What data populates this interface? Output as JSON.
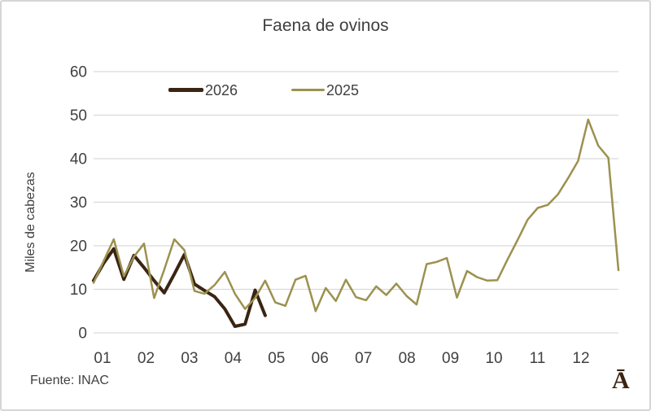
{
  "title": "Faena de ovinos",
  "source": "Fuente: INAC",
  "watermark": "Ā",
  "legend": [
    {
      "label": "2026",
      "color": "#3A2413"
    },
    {
      "label": "2025",
      "color": "#9C9150"
    }
  ],
  "colors": {
    "text": "#404040",
    "gridline": "#d9d9d9",
    "series_2026": "#3A2413",
    "series_2025": "#9C9150",
    "watermark": "#3B2413",
    "frame_border": "#d6d6d6"
  },
  "chart_data": {
    "type": "line",
    "title": "Faena de ovinos",
    "xlabel": "",
    "ylabel": "Miles de cabezas",
    "x_tick_labels": [
      "01",
      "02",
      "03",
      "04",
      "05",
      "06",
      "07",
      "08",
      "09",
      "10",
      "11",
      "12"
    ],
    "y_ticks": [
      0,
      10,
      20,
      30,
      40,
      50,
      60
    ],
    "ylim": [
      0,
      60
    ],
    "grid": true,
    "legend_position": "top-inside",
    "x_axis_note": "weekly points, tick labels are months",
    "series": [
      {
        "name": "2026",
        "color": "#3A2413",
        "stroke_width": 4,
        "values": [
          12,
          16,
          19.3,
          12.3,
          17.8,
          15,
          12,
          9.2,
          13.5,
          18,
          11.2,
          9.7,
          8.3,
          5.5,
          1.5,
          2,
          9.8,
          4
        ]
      },
      {
        "name": "2025",
        "color": "#9C9150",
        "stroke_width": 2.5,
        "values": [
          11.5,
          16.5,
          21.5,
          13,
          17.5,
          20.5,
          8,
          14.5,
          21.5,
          19,
          9.6,
          9,
          11,
          14,
          9,
          5.5,
          8,
          12,
          7,
          6.2,
          12.2,
          13.1,
          5,
          10.3,
          7.3,
          12.2,
          8.2,
          7.5,
          10.7,
          8.7,
          11.3,
          8.5,
          6.5,
          15.8,
          16.3,
          17.2,
          8.1,
          14.2,
          12.8,
          12,
          12.1,
          16.8,
          21.3,
          26,
          28.7,
          29.4,
          31.8,
          35.5,
          39.5,
          49,
          43,
          40.2,
          14.4
        ]
      }
    ]
  }
}
